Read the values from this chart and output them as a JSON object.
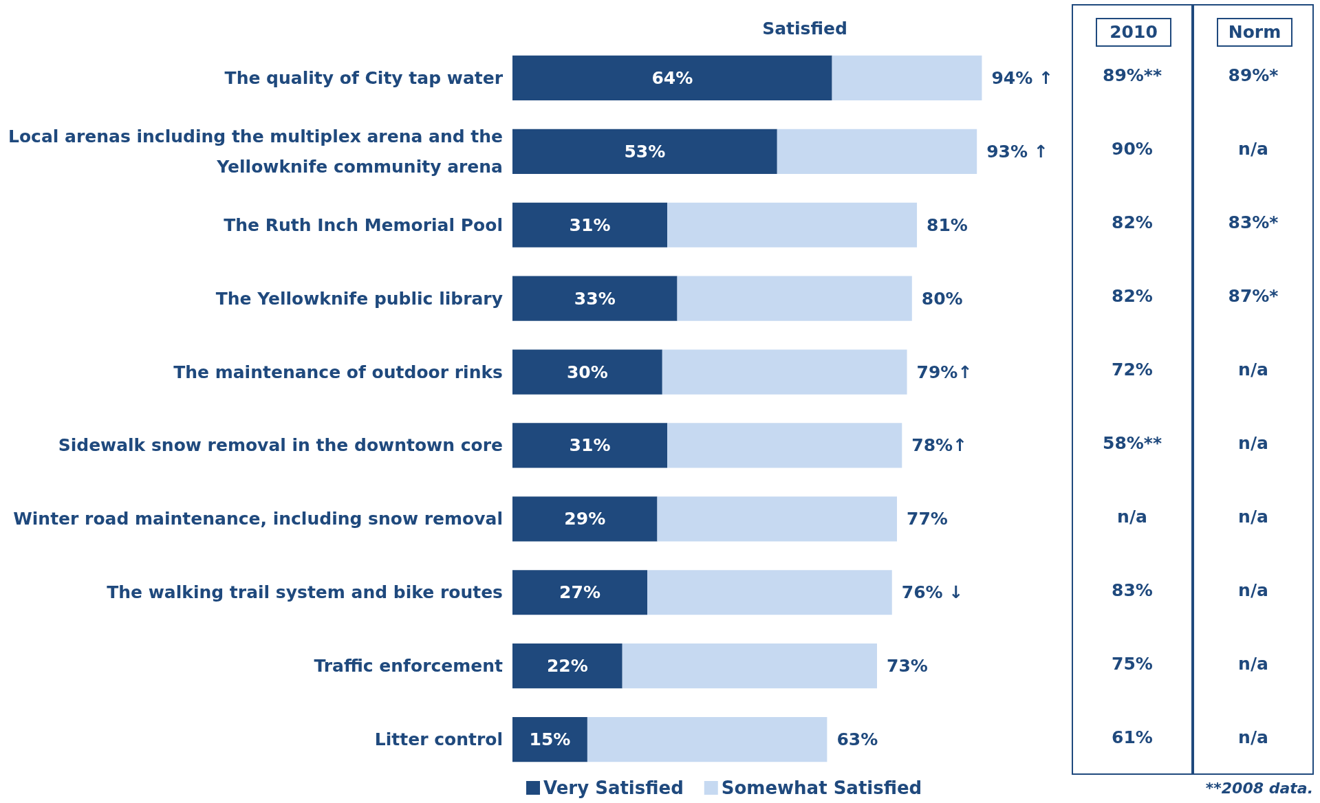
{
  "chart_data": [
    {
      "type": "bar",
      "orientation": "horizontal",
      "stacked": true,
      "title": "Satisfied",
      "categories": [
        "The quality of City tap water",
        "Local arenas including the multiplex arena and the Yellowknife community arena",
        "The Ruth Inch Memorial Pool",
        "The Yellowknife public library",
        "The maintenance of outdoor rinks",
        "Sidewalk snow removal in the downtown core",
        "Winter road maintenance, including snow removal",
        "The walking trail system and bike routes",
        "Traffic enforcement",
        "Litter control"
      ],
      "series": [
        {
          "name": "Very Satisfied",
          "color": "#1f497d",
          "values": [
            64,
            53,
            31,
            33,
            30,
            31,
            29,
            27,
            22,
            15
          ],
          "value_labels": [
            "64%",
            "53%",
            "31%",
            "33%",
            "30%",
            "31%",
            "29%",
            "27%",
            "22%",
            "15%"
          ]
        },
        {
          "name": "Somewhat Satisfied",
          "color": "#c6d9f1",
          "values": [
            30,
            40,
            50,
            47,
            49,
            47,
            48,
            49,
            51,
            48
          ]
        }
      ],
      "totals": [
        "94% ↑",
        "93% ↑",
        "81%",
        "80%",
        "79%↑",
        "78%↑",
        "77%",
        "76% ↓",
        "73%",
        "63%"
      ],
      "tick_labels": "y",
      "legend": "bottom"
    },
    {
      "type": "other",
      "categories": [
        "2010",
        "Norm"
      ],
      "cell_labels": [
        [
          "89%**",
          "89%*"
        ],
        [
          "90%",
          "n/a"
        ],
        [
          "82%",
          "83%*"
        ],
        [
          "82%",
          "87%*"
        ],
        [
          "72%",
          "n/a"
        ],
        [
          "58%**",
          "n/a"
        ],
        [
          "n/a",
          "n/a"
        ],
        [
          "83%",
          "n/a"
        ],
        [
          "75%",
          "n/a"
        ],
        [
          "61%",
          "n/a"
        ]
      ],
      "annotations": [
        "**2008 data."
      ]
    }
  ]
}
